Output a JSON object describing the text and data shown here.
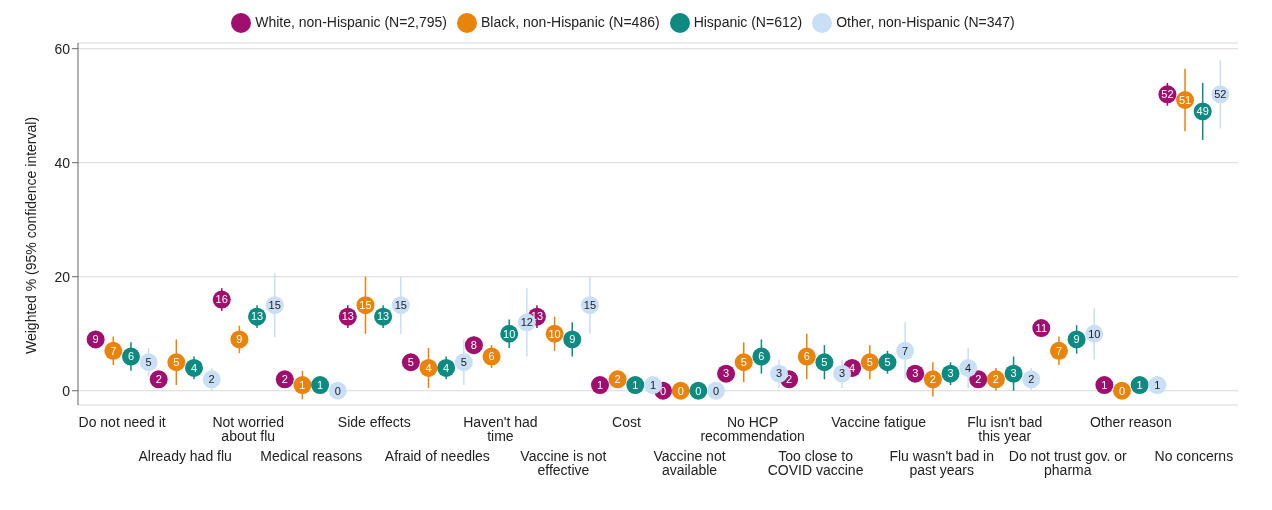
{
  "chart_data": {
    "type": "scatter",
    "ylabel": "Weighted % (95% confidence interval)",
    "categories": [
      "Do not need it",
      "Already had flu",
      "Not worried about flu",
      "Medical reasons",
      "Side effects",
      "Afraid of needles",
      "Haven't had time",
      "Vaccine is not effective",
      "Cost",
      "Vaccine not available",
      "No HCP recommendation",
      "Too close to COVID vaccine",
      "Vaccine fatigue",
      "Flu wasn't bad in past years",
      "Flu isn't bad this year",
      "Do not trust gov. or pharma",
      "Other reason",
      "No concerns"
    ],
    "series": [
      {
        "name": "White, non-Hispanic (N=2,795)",
        "color": "#9e0f6e",
        "values": [
          9,
          2,
          16,
          2,
          13,
          5,
          8,
          13,
          1,
          0,
          3,
          2,
          4,
          3,
          2,
          11,
          1,
          52
        ],
        "errors": [
          1.5,
          1,
          2,
          1,
          2,
          1.5,
          1.5,
          2,
          0.8,
          0.6,
          1,
          1,
          1.5,
          1,
          1,
          1.5,
          0.8,
          2
        ]
      },
      {
        "name": "Black, non-Hispanic (N=486)",
        "color": "#e8830c",
        "values": [
          7,
          5,
          9,
          1,
          15,
          4,
          6,
          10,
          2,
          0,
          5,
          6,
          5,
          2,
          2,
          7,
          0,
          51
        ],
        "errors": [
          2.5,
          4,
          2.4,
          2.5,
          5,
          3.5,
          2,
          3,
          1.5,
          0.6,
          3.5,
          4,
          3,
          3,
          2,
          2.5,
          0.6,
          5.5
        ]
      },
      {
        "name": "Hispanic (N=612)",
        "color": "#0f8a80",
        "values": [
          6,
          4,
          13,
          1,
          13,
          4,
          10,
          9,
          1,
          0,
          6,
          5,
          5,
          3,
          3,
          9,
          1,
          49
        ],
        "errors": [
          2.5,
          2,
          2,
          1,
          2,
          2,
          2.5,
          3,
          1,
          0.6,
          3,
          3,
          2,
          2,
          3,
          2.5,
          1,
          5
        ]
      },
      {
        "name": "Other, non-Hispanic (N=347)",
        "color": "#c9dff5",
        "values": [
          5,
          2,
          15,
          0,
          15,
          5,
          12,
          15,
          1,
          0,
          3,
          3,
          7,
          4,
          2,
          10,
          1,
          52
        ],
        "errors": [
          2.5,
          2,
          5.6,
          0.6,
          5,
          4,
          6,
          5,
          1,
          0.6,
          2.5,
          2.5,
          5,
          3.5,
          2,
          4.5,
          1,
          6
        ]
      }
    ],
    "ylim": [
      -2.5,
      61
    ],
    "yticks": [
      0,
      20,
      40,
      60
    ],
    "grid": "y",
    "legend": "top",
    "marker": "circle",
    "data_labels": true
  }
}
